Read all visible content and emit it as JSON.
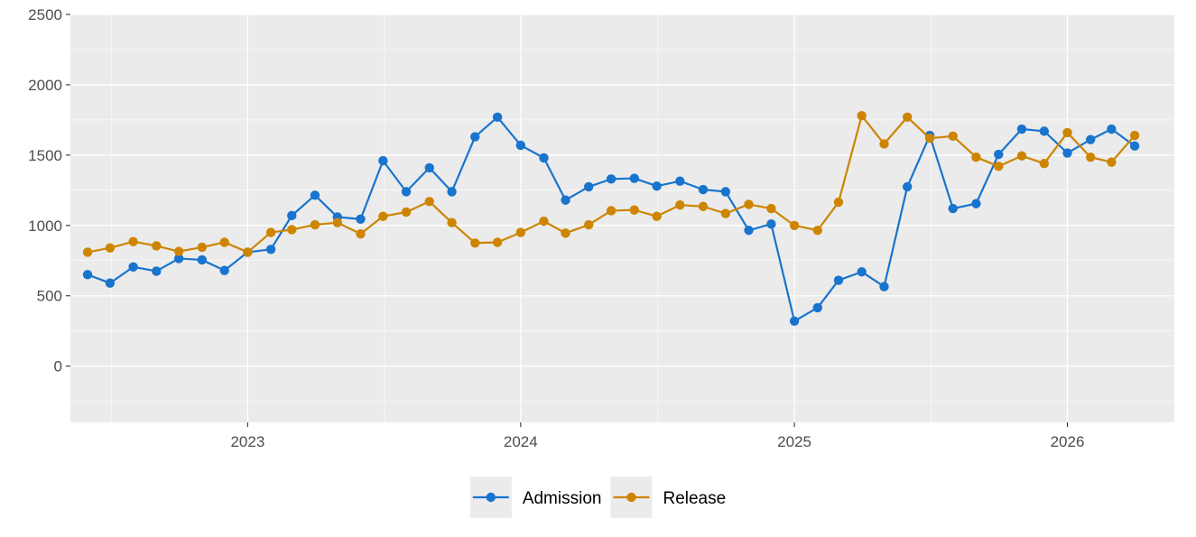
{
  "chart_data": {
    "type": "line",
    "title": "",
    "xlabel": "",
    "ylabel": "",
    "x_axis_type": "date",
    "xlim": [
      "2022-05-09",
      "2026-05-24"
    ],
    "ylim": [
      -400,
      2500
    ],
    "y_ticks": [
      0,
      500,
      1000,
      1500,
      2000,
      2500
    ],
    "x_ticks": [
      {
        "date": "2023-01-01",
        "label": "2023"
      },
      {
        "date": "2024-01-01",
        "label": "2024"
      },
      {
        "date": "2025-01-01",
        "label": "2025"
      },
      {
        "date": "2026-01-01",
        "label": "2026"
      }
    ],
    "grid": true,
    "legend_position": "bottom",
    "x": [
      "2022-06-01",
      "2022-07-01",
      "2022-08-01",
      "2022-09-01",
      "2022-10-01",
      "2022-11-01",
      "2022-12-01",
      "2023-01-01",
      "2023-02-01",
      "2023-03-01",
      "2023-04-01",
      "2023-05-01",
      "2023-06-01",
      "2023-07-01",
      "2023-08-01",
      "2023-09-01",
      "2023-10-01",
      "2023-11-01",
      "2023-12-01",
      "2024-01-01",
      "2024-02-01",
      "2024-03-01",
      "2024-04-01",
      "2024-05-01",
      "2024-06-01",
      "2024-07-01",
      "2024-08-01",
      "2024-09-01",
      "2024-10-01",
      "2024-11-01",
      "2024-12-01",
      "2025-01-01",
      "2025-02-01",
      "2025-03-01",
      "2025-04-01",
      "2025-05-01",
      "2025-06-01",
      "2025-07-01",
      "2025-08-01",
      "2025-09-01",
      "2025-10-01",
      "2025-11-01",
      "2025-12-01",
      "2026-01-01",
      "2026-02-01",
      "2026-03-01",
      "2026-04-01"
    ],
    "series": [
      {
        "name": "Admission",
        "color": "#1874CD",
        "values": [
          650,
          590,
          705,
          675,
          765,
          755,
          680,
          810,
          830,
          1070,
          1215,
          1060,
          1045,
          1460,
          1240,
          1410,
          1240,
          1630,
          1770,
          1570,
          1480,
          1180,
          1275,
          1330,
          1335,
          1280,
          1315,
          1255,
          1240,
          965,
          1010,
          320,
          415,
          610,
          670,
          565,
          1275,
          1640,
          1120,
          1155,
          1505,
          1685,
          1670,
          1515,
          1610,
          1685,
          1565
        ]
      },
      {
        "name": "Release",
        "color": "#CD8500",
        "values": [
          810,
          840,
          885,
          855,
          815,
          845,
          880,
          810,
          950,
          970,
          1005,
          1020,
          940,
          1065,
          1095,
          1170,
          1020,
          875,
          880,
          950,
          1030,
          945,
          1005,
          1105,
          1110,
          1065,
          1145,
          1135,
          1085,
          1150,
          1120,
          1000,
          965,
          1165,
          1780,
          1580,
          1770,
          1620,
          1635,
          1485,
          1420,
          1495,
          1440,
          1660,
          1485,
          1450,
          1640
        ]
      }
    ]
  }
}
